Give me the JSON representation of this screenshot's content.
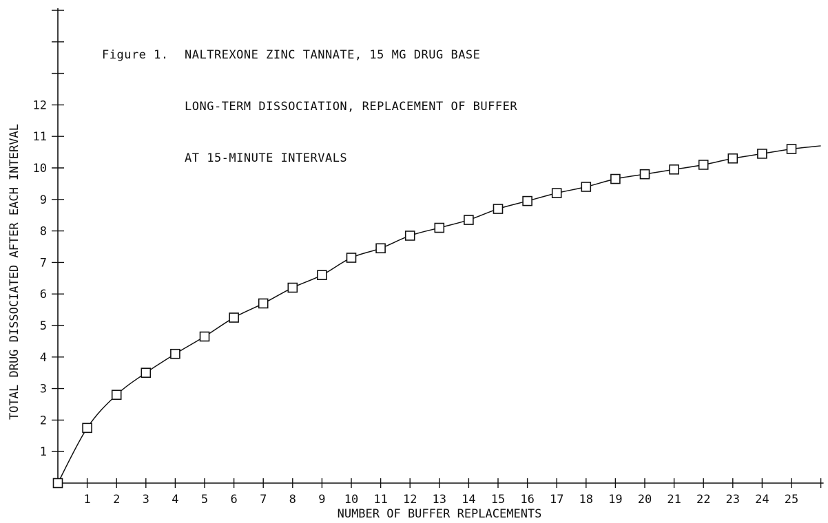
{
  "caption": {
    "figure_label": "Figure 1.",
    "lines": [
      "NALTREXONE ZINC TANNATE, 15 MG DRUG BASE",
      "LONG-TERM DISSOCIATION, REPLACEMENT OF BUFFER",
      "AT 15-MINUTE INTERVALS"
    ]
  },
  "chart_data": {
    "type": "line",
    "title": "NALTREXONE ZINC TANNATE, 15 MG DRUG BASE LONG-TERM DISSOCIATION, REPLACEMENT OF BUFFER AT 15-MINUTE INTERVALS",
    "xlabel": "NUMBER OF BUFFER REPLACEMENTS",
    "ylabel": "TOTAL DRUG DISSOCIATED AFTER EACH INTERVAL",
    "xlim": [
      0,
      26
    ],
    "ylim": [
      0,
      15
    ],
    "x_ticks": [
      1,
      2,
      3,
      4,
      5,
      6,
      7,
      8,
      9,
      10,
      11,
      12,
      13,
      14,
      15,
      16,
      17,
      18,
      19,
      20,
      21,
      22,
      23,
      24,
      25
    ],
    "y_ticks": [
      1,
      2,
      3,
      4,
      5,
      6,
      7,
      8,
      9,
      10,
      11,
      12
    ],
    "grid": false,
    "marker": "open-square",
    "line_color": "#111111",
    "series": [
      {
        "x": [
          0,
          1,
          2,
          3,
          4,
          5,
          6,
          7,
          8,
          9,
          10,
          11,
          12,
          13,
          14,
          15,
          16,
          17,
          18,
          19,
          20,
          21,
          22,
          23,
          24,
          25,
          26
        ],
        "y": [
          0,
          1.75,
          2.8,
          3.5,
          4.1,
          4.65,
          5.25,
          5.7,
          6.2,
          6.6,
          7.15,
          7.45,
          7.85,
          8.1,
          8.35,
          8.7,
          8.95,
          9.2,
          9.4,
          9.65,
          9.8,
          9.95,
          10.1,
          10.3,
          10.45,
          10.6,
          10.7
        ]
      }
    ]
  }
}
